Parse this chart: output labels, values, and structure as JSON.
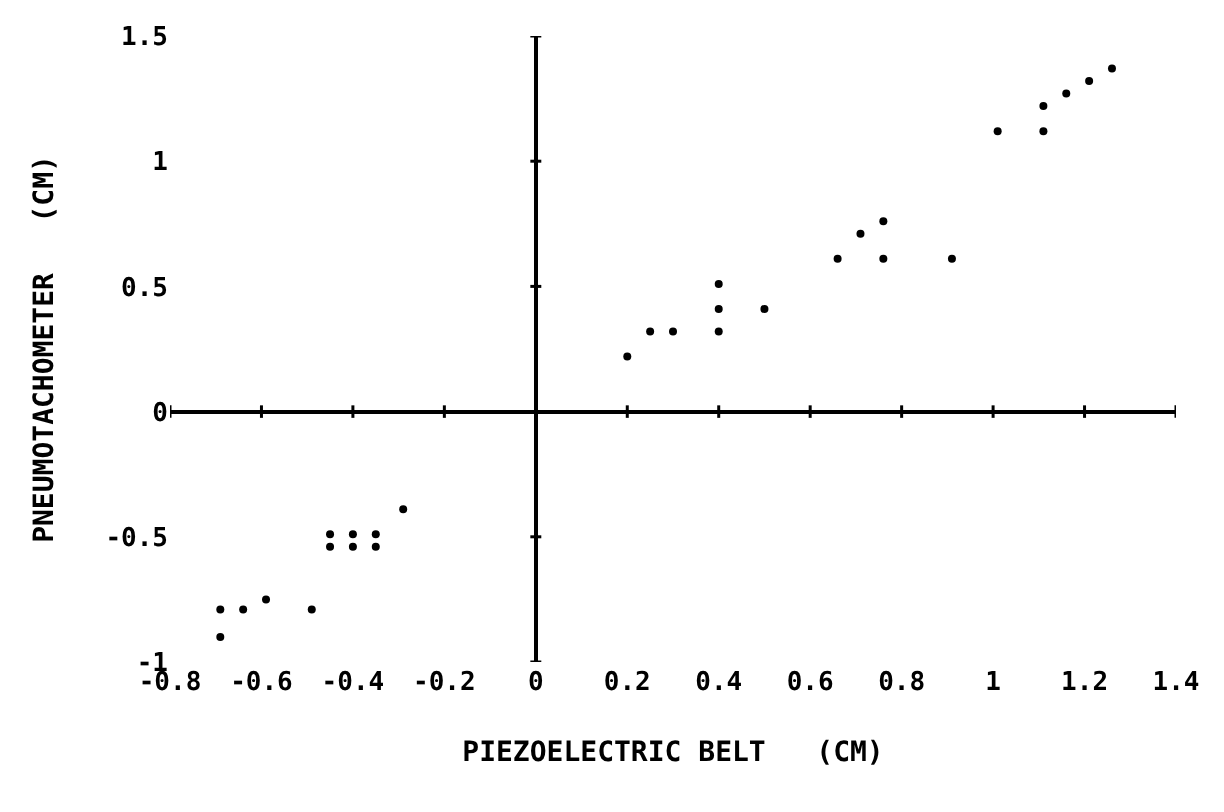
{
  "chart_data": {
    "type": "scatter",
    "xlabel": "PIEZOELECTRIC BELT   (CM)",
    "ylabel": "PNEUMOTACHOMETER   (CM)",
    "x": [
      -0.69,
      -0.69,
      -0.64,
      -0.59,
      -0.49,
      -0.45,
      -0.45,
      -0.4,
      -0.4,
      -0.35,
      -0.35,
      -0.29,
      0.2,
      0.25,
      0.3,
      0.4,
      0.4,
      0.4,
      0.5,
      0.66,
      0.71,
      0.76,
      0.76,
      0.91,
      1.01,
      1.11,
      1.11,
      1.16,
      1.21,
      1.26
    ],
    "series": [
      {
        "color": "#000000",
        "values": [
          -0.9,
          -0.79,
          -0.79,
          -0.75,
          -0.79,
          -0.49,
          -0.54,
          -0.49,
          -0.54,
          -0.49,
          -0.54,
          -0.39,
          0.22,
          0.32,
          0.32,
          0.32,
          0.41,
          0.51,
          0.41,
          0.61,
          0.71,
          0.61,
          0.76,
          0.61,
          1.12,
          1.12,
          1.22,
          1.27,
          1.32,
          1.37
        ]
      }
    ],
    "marker": "circle",
    "xlim": [
      -0.8,
      1.4
    ],
    "ylim": [
      -1,
      1.5
    ],
    "xticks": [
      -0.8,
      -0.6,
      -0.4,
      -0.2,
      0,
      0.2,
      0.4,
      0.6,
      0.8,
      1,
      1.2,
      1.4
    ],
    "yticks": [
      -1,
      -0.5,
      0,
      0.5,
      1,
      1.5
    ]
  }
}
